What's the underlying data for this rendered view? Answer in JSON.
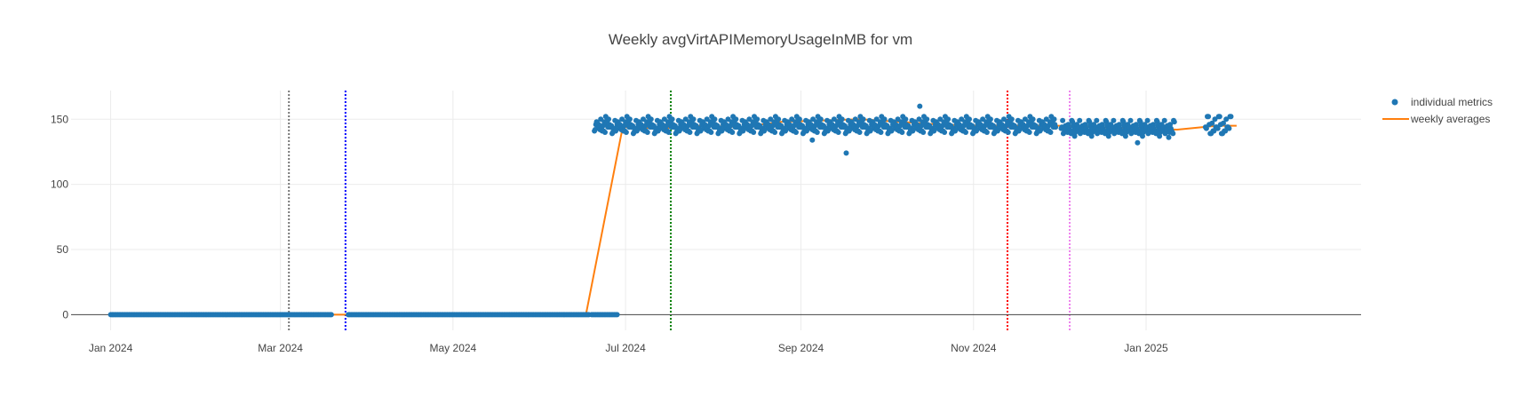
{
  "chart_data": {
    "type": "scatter",
    "title": "Weekly avgVirtAPIMemoryUsageInMB for vm",
    "xlabel": "",
    "ylabel": "",
    "x_axis_type": "date",
    "xlim": [
      "2023-12-18",
      "2025-03-18"
    ],
    "ylim": [
      -12,
      172
    ],
    "x_ticks": [
      {
        "value": "2024-01-01",
        "label": "Jan 2024"
      },
      {
        "value": "2024-03-01",
        "label": "Mar 2024"
      },
      {
        "value": "2024-05-01",
        "label": "May 2024"
      },
      {
        "value": "2024-07-01",
        "label": "Jul 2024"
      },
      {
        "value": "2024-09-01",
        "label": "Sep 2024"
      },
      {
        "value": "2024-11-01",
        "label": "Nov 2024"
      },
      {
        "value": "2025-01-01",
        "label": "Jan 2025"
      }
    ],
    "y_ticks": [
      {
        "value": 0,
        "label": "0"
      },
      {
        "value": 50,
        "label": "50"
      },
      {
        "value": 100,
        "label": "100"
      },
      {
        "value": 150,
        "label": "150"
      }
    ],
    "grid": true,
    "legend": {
      "position": "top-right"
    },
    "series": [
      {
        "name": "individual metrics",
        "mode": "markers",
        "color": "#1f77b4",
        "segments": [
          {
            "start": "2024-01-01",
            "end": "2024-03-19",
            "samples_per_day": 2,
            "values": [
              0
            ]
          },
          {
            "start": "2024-03-25",
            "end": "2024-06-18",
            "samples_per_day": 2,
            "values": [
              0
            ]
          },
          {
            "start": "2024-06-19",
            "end": "2024-06-28",
            "samples_per_day": 2,
            "values": [
              0
            ]
          },
          {
            "start": "2024-06-20",
            "end": "2024-11-30",
            "samples_per_day": 4,
            "values": [
              141,
              144,
              148,
              139,
              146,
              143,
              150,
              142,
              145,
              147,
              140,
              144,
              149,
              143,
              146,
              141,
              145,
              152,
              142,
              144
            ]
          },
          {
            "start": "2024-12-02",
            "end": "2025-01-11",
            "samples_per_day": 4,
            "values": [
              143,
              146,
              140,
              145,
              142,
              148,
              139,
              144,
              141,
              146,
              143,
              137,
              145,
              142,
              149,
              140
            ]
          },
          {
            "start": "2025-01-22",
            "end": "2025-01-31",
            "samples_per_day": 3,
            "values": [
              144,
              150,
              141,
              147,
              139,
              146,
              152,
              143
            ]
          }
        ],
        "outliers": [
          {
            "x": "2024-09-17",
            "y": 124
          },
          {
            "x": "2024-09-05",
            "y": 134
          },
          {
            "x": "2024-10-13",
            "y": 160
          },
          {
            "x": "2024-12-29",
            "y": 132
          },
          {
            "x": "2025-01-09",
            "y": 136
          }
        ]
      },
      {
        "name": "weekly averages",
        "mode": "lines",
        "color": "#ff7f0e",
        "points": [
          {
            "x": "2024-01-01",
            "y": 0
          },
          {
            "x": "2024-06-17",
            "y": 0
          },
          {
            "x": "2024-06-30",
            "y": 144
          },
          {
            "x": "2024-07-14",
            "y": 143
          },
          {
            "x": "2024-07-28",
            "y": 145
          },
          {
            "x": "2024-08-11",
            "y": 144
          },
          {
            "x": "2024-08-25",
            "y": 148
          },
          {
            "x": "2024-09-08",
            "y": 149
          },
          {
            "x": "2024-09-22",
            "y": 150
          },
          {
            "x": "2024-10-06",
            "y": 148
          },
          {
            "x": "2024-10-20",
            "y": 146
          },
          {
            "x": "2024-11-03",
            "y": 145
          },
          {
            "x": "2024-11-17",
            "y": 145
          },
          {
            "x": "2024-12-01",
            "y": 145
          },
          {
            "x": "2024-12-15",
            "y": 144
          },
          {
            "x": "2024-12-29",
            "y": 143
          },
          {
            "x": "2025-01-12",
            "y": 142
          },
          {
            "x": "2025-01-26",
            "y": 145
          },
          {
            "x": "2025-02-02",
            "y": 145
          }
        ]
      }
    ],
    "vertical_lines": [
      {
        "x": "2024-03-04",
        "color": "#777777"
      },
      {
        "x": "2024-03-24",
        "color": "#0000ff"
      },
      {
        "x": "2024-07-17",
        "color": "#008000"
      },
      {
        "x": "2024-11-13",
        "color": "#ff0000"
      },
      {
        "x": "2024-12-05",
        "color": "#ee82ee"
      }
    ]
  }
}
